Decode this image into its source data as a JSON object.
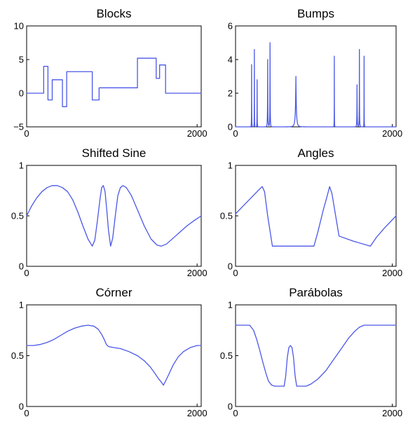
{
  "line_color": "#4a57e8",
  "chart_data": [
    {
      "type": "line",
      "title": "Blocks",
      "xlim": [
        0,
        2048
      ],
      "ylim": [
        -5,
        10
      ],
      "xticks": [
        0,
        2000
      ],
      "xtick_labels": [
        "0",
        "2000"
      ],
      "yticks": [
        -5,
        0,
        5,
        10
      ],
      "ytick_labels": [
        "−5",
        "0",
        "5",
        "10"
      ],
      "series": [
        {
          "points": [
            [
              0,
              0
            ],
            [
              200,
              0
            ],
            [
              200,
              4
            ],
            [
              250,
              4
            ],
            [
              250,
              -1
            ],
            [
              300,
              -1
            ],
            [
              300,
              2
            ],
            [
              420,
              2
            ],
            [
              420,
              -2
            ],
            [
              470,
              -2
            ],
            [
              470,
              3.2
            ],
            [
              770,
              3.2
            ],
            [
              770,
              -1
            ],
            [
              850,
              -1
            ],
            [
              850,
              0.8
            ],
            [
              1300,
              0.8
            ],
            [
              1300,
              5.2
            ],
            [
              1520,
              5.2
            ],
            [
              1520,
              2.2
            ],
            [
              1560,
              2.2
            ],
            [
              1560,
              4.2
            ],
            [
              1630,
              4.2
            ],
            [
              1630,
              0
            ],
            [
              2048,
              0
            ]
          ]
        }
      ]
    },
    {
      "type": "line",
      "title": "Bumps",
      "xlim": [
        0,
        2048
      ],
      "ylim": [
        0,
        6
      ],
      "xticks": [
        0,
        2000
      ],
      "xtick_labels": [
        "0",
        "2000"
      ],
      "yticks": [
        0,
        2,
        4,
        6
      ],
      "ytick_labels": [
        "0",
        "2",
        "4",
        "6"
      ],
      "bumps": [
        {
          "pos": 205,
          "height": 3.7,
          "width": 4
        },
        {
          "pos": 240,
          "height": 4.6,
          "width": 3
        },
        {
          "pos": 275,
          "height": 2.8,
          "width": 4
        },
        {
          "pos": 410,
          "height": 4.0,
          "width": 7
        },
        {
          "pos": 440,
          "height": 5.0,
          "width": 6
        },
        {
          "pos": 770,
          "height": 3.0,
          "width": 22
        },
        {
          "pos": 1260,
          "height": 4.2,
          "width": 3
        },
        {
          "pos": 1550,
          "height": 2.5,
          "width": 7
        },
        {
          "pos": 1580,
          "height": 4.6,
          "width": 5
        },
        {
          "pos": 1640,
          "height": 4.2,
          "width": 3
        }
      ]
    },
    {
      "type": "line",
      "title": "Shifted Sine",
      "xlim": [
        0,
        2048
      ],
      "ylim": [
        0,
        1
      ],
      "xticks": [
        0,
        2000
      ],
      "xtick_labels": [
        "0",
        "2000"
      ],
      "yticks": [
        0,
        0.5,
        1
      ],
      "ytick_labels": [
        "0",
        "0.5",
        "1"
      ],
      "series": [
        {
          "points": [
            [
              0,
              0.5
            ],
            [
              60,
              0.6
            ],
            [
              120,
              0.68
            ],
            [
              180,
              0.74
            ],
            [
              240,
              0.78
            ],
            [
              300,
              0.8
            ],
            [
              360,
              0.8
            ],
            [
              420,
              0.78
            ],
            [
              480,
              0.74
            ],
            [
              540,
              0.66
            ],
            [
              600,
              0.54
            ],
            [
              660,
              0.4
            ],
            [
              720,
              0.27
            ],
            [
              770,
              0.2
            ],
            [
              800,
              0.26
            ],
            [
              830,
              0.45
            ],
            [
              860,
              0.66
            ],
            [
              880,
              0.78
            ],
            [
              900,
              0.8
            ],
            [
              920,
              0.74
            ],
            [
              940,
              0.56
            ],
            [
              960,
              0.36
            ],
            [
              985,
              0.2
            ],
            [
              1010,
              0.28
            ],
            [
              1040,
              0.5
            ],
            [
              1070,
              0.7
            ],
            [
              1100,
              0.78
            ],
            [
              1130,
              0.8
            ],
            [
              1170,
              0.78
            ],
            [
              1230,
              0.7
            ],
            [
              1300,
              0.56
            ],
            [
              1380,
              0.4
            ],
            [
              1460,
              0.27
            ],
            [
              1530,
              0.21
            ],
            [
              1580,
              0.2
            ],
            [
              1640,
              0.22
            ],
            [
              1720,
              0.28
            ],
            [
              1800,
              0.34
            ],
            [
              1880,
              0.4
            ],
            [
              1960,
              0.45
            ],
            [
              2048,
              0.5
            ]
          ]
        }
      ]
    },
    {
      "type": "line",
      "title": "Angles",
      "xlim": [
        0,
        2048
      ],
      "ylim": [
        0,
        1
      ],
      "xticks": [
        0,
        2000
      ],
      "xtick_labels": [
        "0",
        "2000"
      ],
      "yticks": [
        0,
        0.5,
        1
      ],
      "ytick_labels": [
        "0",
        "0.5",
        "1"
      ],
      "series": [
        {
          "points": [
            [
              0,
              0.52
            ],
            [
              100,
              0.6
            ],
            [
              200,
              0.68
            ],
            [
              300,
              0.76
            ],
            [
              340,
              0.79
            ],
            [
              370,
              0.74
            ],
            [
              410,
              0.5
            ],
            [
              450,
              0.3
            ],
            [
              470,
              0.2
            ],
            [
              1000,
              0.2
            ],
            [
              1050,
              0.34
            ],
            [
              1120,
              0.56
            ],
            [
              1170,
              0.7
            ],
            [
              1200,
              0.79
            ],
            [
              1230,
              0.72
            ],
            [
              1290,
              0.44
            ],
            [
              1320,
              0.3
            ],
            [
              1500,
              0.25
            ],
            [
              1720,
              0.2
            ],
            [
              1800,
              0.29
            ],
            [
              1900,
              0.38
            ],
            [
              2048,
              0.5
            ]
          ]
        }
      ]
    },
    {
      "type": "line",
      "title": "Córner",
      "xlim": [
        0,
        2048
      ],
      "ylim": [
        0,
        1
      ],
      "xticks": [
        0,
        2000
      ],
      "xtick_labels": [
        "0",
        "2000"
      ],
      "yticks": [
        0,
        0.5,
        1
      ],
      "ytick_labels": [
        "0",
        "0.5",
        "1"
      ],
      "series": [
        {
          "points": [
            [
              0,
              0.6
            ],
            [
              80,
              0.6
            ],
            [
              160,
              0.61
            ],
            [
              240,
              0.63
            ],
            [
              320,
              0.66
            ],
            [
              400,
              0.7
            ],
            [
              480,
              0.74
            ],
            [
              560,
              0.77
            ],
            [
              640,
              0.79
            ],
            [
              720,
              0.8
            ],
            [
              790,
              0.79
            ],
            [
              840,
              0.76
            ],
            [
              880,
              0.71
            ],
            [
              910,
              0.66
            ],
            [
              935,
              0.61
            ],
            [
              960,
              0.59
            ],
            [
              1020,
              0.58
            ],
            [
              1100,
              0.57
            ],
            [
              1200,
              0.54
            ],
            [
              1300,
              0.5
            ],
            [
              1380,
              0.45
            ],
            [
              1450,
              0.39
            ],
            [
              1510,
              0.32
            ],
            [
              1550,
              0.27
            ],
            [
              1580,
              0.24
            ],
            [
              1605,
              0.21
            ],
            [
              1630,
              0.25
            ],
            [
              1670,
              0.32
            ],
            [
              1720,
              0.41
            ],
            [
              1780,
              0.49
            ],
            [
              1840,
              0.54
            ],
            [
              1920,
              0.58
            ],
            [
              2000,
              0.6
            ],
            [
              2048,
              0.6
            ]
          ]
        }
      ]
    },
    {
      "type": "line",
      "title": "Parábolas",
      "xlim": [
        0,
        2048
      ],
      "ylim": [
        0,
        1
      ],
      "xticks": [
        0,
        2000
      ],
      "xtick_labels": [
        "0",
        "2000"
      ],
      "yticks": [
        0,
        0.5,
        1
      ],
      "ytick_labels": [
        "0",
        "0.5",
        "1"
      ],
      "series": [
        {
          "points": [
            [
              0,
              0.8
            ],
            [
              180,
              0.8
            ],
            [
              230,
              0.75
            ],
            [
              270,
              0.66
            ],
            [
              310,
              0.55
            ],
            [
              350,
              0.43
            ],
            [
              390,
              0.32
            ],
            [
              420,
              0.25
            ],
            [
              460,
              0.21
            ],
            [
              500,
              0.2
            ],
            [
              620,
              0.2
            ],
            [
              640,
              0.3
            ],
            [
              660,
              0.48
            ],
            [
              680,
              0.58
            ],
            [
              700,
              0.6
            ],
            [
              720,
              0.58
            ],
            [
              740,
              0.48
            ],
            [
              760,
              0.3
            ],
            [
              780,
              0.2
            ],
            [
              900,
              0.2
            ],
            [
              960,
              0.22
            ],
            [
              1050,
              0.27
            ],
            [
              1150,
              0.35
            ],
            [
              1250,
              0.46
            ],
            [
              1350,
              0.57
            ],
            [
              1440,
              0.67
            ],
            [
              1520,
              0.74
            ],
            [
              1580,
              0.78
            ],
            [
              1640,
              0.8
            ],
            [
              2048,
              0.8
            ]
          ]
        }
      ]
    }
  ]
}
